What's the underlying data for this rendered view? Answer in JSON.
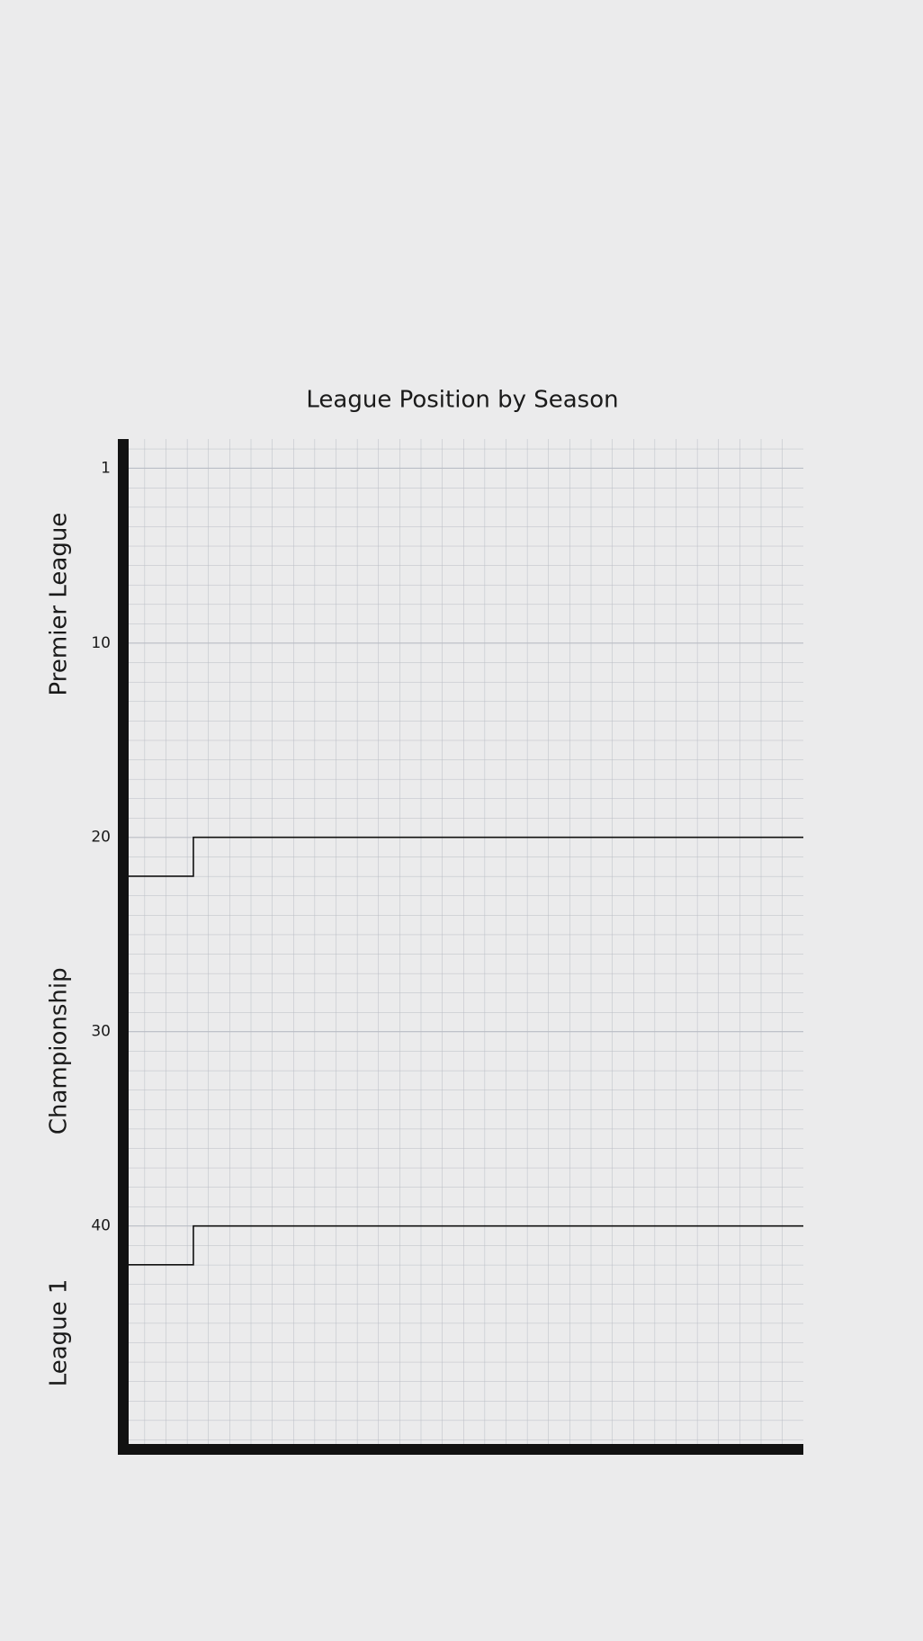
{
  "chart_data": {
    "type": "line",
    "title": "League Position by Season",
    "xlim": [
      0,
      32
    ],
    "ylim": [
      -0.5,
      51.5
    ],
    "y_inverted": true,
    "grid": true,
    "yticks": [
      1,
      10,
      20,
      30,
      40
    ],
    "annotations": [
      {
        "text": "Premier League",
        "y": 8
      },
      {
        "text": "Championship",
        "y": 31
      },
      {
        "text": "League 1",
        "y": 45.5
      }
    ],
    "series": [
      {
        "color": "#111111",
        "x": [
          0,
          3.3,
          3.3,
          32
        ],
        "values": [
          22,
          22,
          20,
          20
        ]
      },
      {
        "color": "#111111",
        "x": [
          0,
          3.3,
          3.3,
          32
        ],
        "values": [
          42,
          42,
          40,
          40
        ]
      }
    ]
  }
}
